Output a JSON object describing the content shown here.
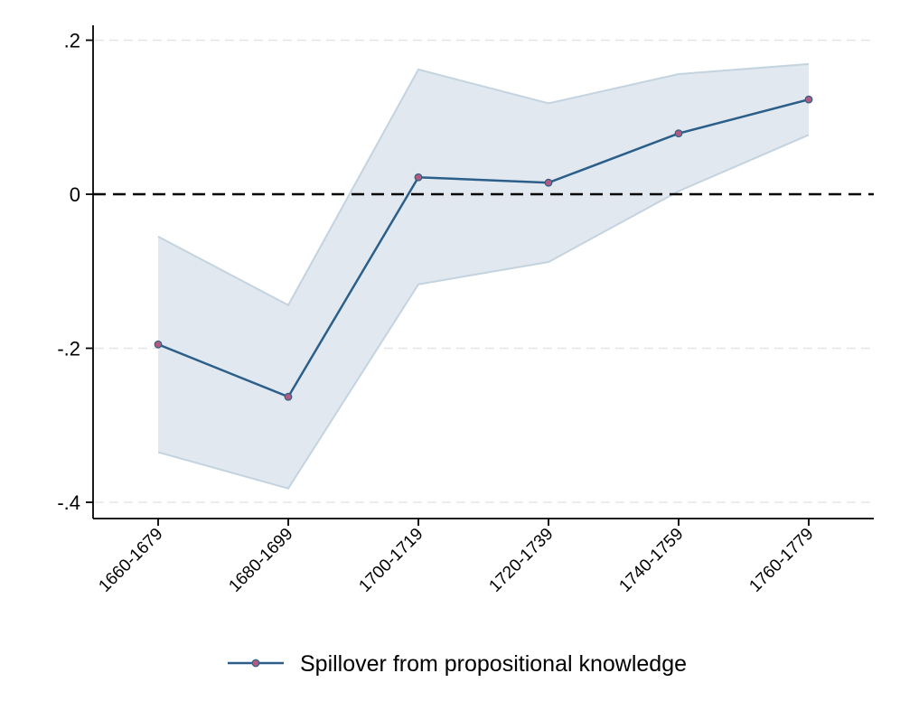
{
  "chart_data": {
    "type": "line",
    "categories": [
      "1660-1679",
      "1680-1699",
      "1700-1719",
      "1720-1739",
      "1740-1759",
      "1760-1779"
    ],
    "series": [
      {
        "name": "Spillover from propositional knowledge",
        "values": [
          -0.195,
          -0.263,
          0.022,
          0.015,
          0.079,
          0.123
        ]
      }
    ],
    "ci_upper": [
      -0.055,
      -0.144,
      0.162,
      0.118,
      0.156,
      0.169
    ],
    "ci_lower": [
      -0.335,
      -0.382,
      -0.117,
      -0.088,
      0.004,
      0.077
    ],
    "reference_line": 0,
    "yticks": [
      0.2,
      0,
      -0.2,
      -0.4
    ],
    "ytick_labels": [
      ".2",
      "0",
      "-.2",
      "-.4"
    ],
    "ylim": [
      -0.42,
      0.22
    ],
    "grid": true,
    "legend_position": "bottom",
    "colors": {
      "line": "#2b5f8a",
      "marker_fill": "#b25a7c",
      "ci_fill": "#e1e8f0",
      "ci_edge": "#c3d3e0",
      "grid": "#e5e5e5",
      "reference": "#000000"
    }
  }
}
